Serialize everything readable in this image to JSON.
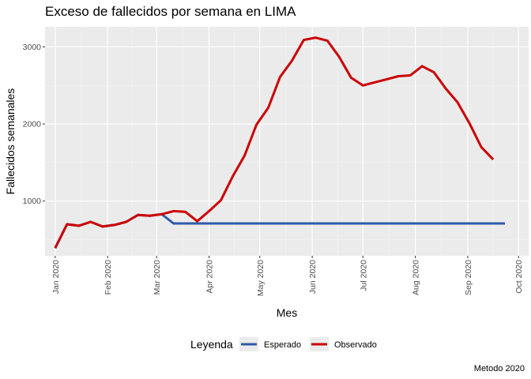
{
  "chart_data": {
    "type": "line",
    "title": "Exceso de fallecidos por semana en LIMA",
    "xlabel": "Mes",
    "ylabel": "Fallecidos semanales",
    "caption": "Metodo 2020",
    "legend_title": "Leyenda",
    "legend_position": "bottom",
    "x_tick_labels": [
      "Jan 2020",
      "Feb 2020",
      "Mar 2020",
      "Apr 2020",
      "May 2020",
      "Jun 2020",
      "Jul 2020",
      "Aug 2020",
      "Sep 2020",
      "Oct 2020"
    ],
    "x_ticks_day_of_year": [
      1,
      32,
      61,
      92,
      122,
      153,
      183,
      214,
      245,
      275
    ],
    "x_range_day_of_year": [
      -5,
      281
    ],
    "y_ticks": [
      1000,
      2000,
      3000
    ],
    "y_range": [
      290,
      3260
    ],
    "x_day_of_year": [
      1,
      8,
      15,
      22,
      29,
      36,
      43,
      50,
      57,
      64,
      71,
      78,
      85,
      92,
      99,
      106,
      113,
      120,
      127,
      134,
      141,
      148,
      155,
      162,
      169,
      176,
      183,
      190,
      197,
      204,
      211,
      218,
      225,
      232,
      239,
      246,
      253,
      260,
      267
    ],
    "series": [
      {
        "name": "Esperado",
        "color": "#2e5aa8",
        "values": [
          390,
          700,
          680,
          730,
          670,
          690,
          730,
          820,
          810,
          830,
          710,
          710,
          710,
          710,
          710,
          710,
          710,
          710,
          710,
          710,
          710,
          710,
          710,
          710,
          710,
          710,
          710,
          710,
          710,
          710,
          710,
          710,
          710,
          710,
          710,
          710,
          710,
          710,
          710
        ]
      },
      {
        "name": "Observado",
        "color": "#cc0000",
        "values": [
          390,
          700,
          680,
          730,
          670,
          690,
          730,
          820,
          810,
          830,
          870,
          860,
          740,
          870,
          1010,
          1320,
          1590,
          1990,
          2210,
          2610,
          2820,
          3090,
          3120,
          3080,
          2870,
          2600,
          2500,
          2540,
          2580,
          2620,
          2630,
          2750,
          2670,
          2460,
          2280,
          2010,
          1700,
          1540,
          null
        ]
      }
    ]
  }
}
